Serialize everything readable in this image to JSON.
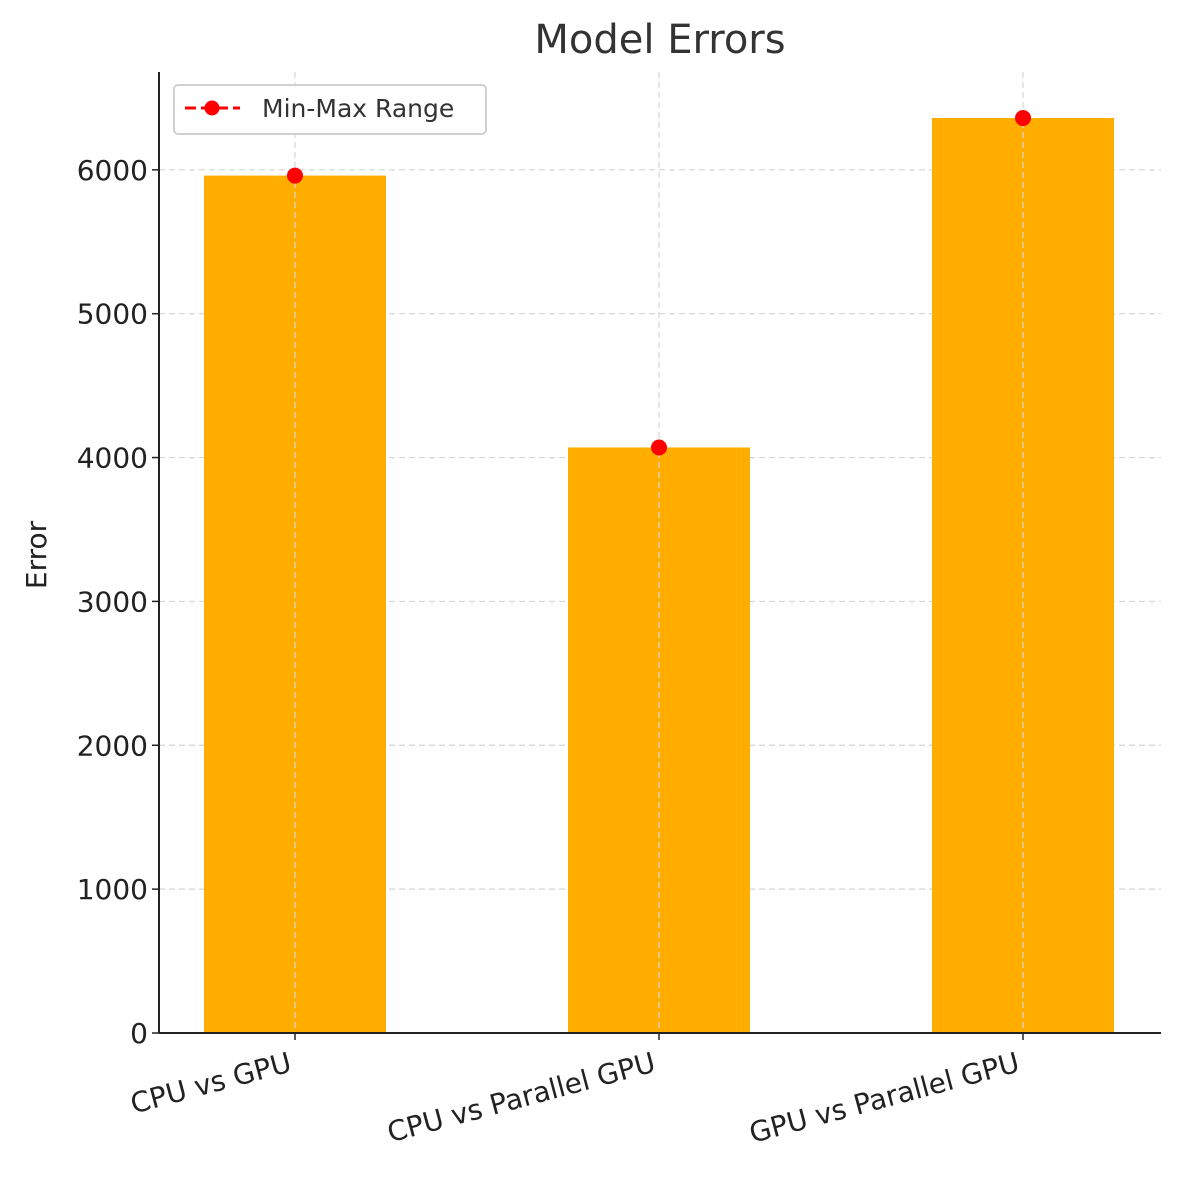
{
  "chart_data": {
    "type": "bar",
    "title": "Model Errors",
    "xlabel": "",
    "ylabel": "Error",
    "categories": [
      "CPU vs GPU",
      "CPU vs Parallel GPU",
      "GPU vs Parallel GPU"
    ],
    "values": [
      5960,
      4070,
      6360
    ],
    "ylim": [
      0,
      6680
    ],
    "yticks": [
      "0",
      "1000",
      "2000",
      "3000",
      "4000",
      "5000",
      "6000"
    ],
    "grid": true,
    "bar_color": "#FFAE00",
    "overlay_series": {
      "name": "Min-Max Range",
      "color": "#FF0000",
      "marker": "circle",
      "linestyle": "dashed",
      "values": [
        5960,
        4070,
        6360
      ]
    },
    "legend_position": "top-left",
    "xtick_rotation": 15
  }
}
